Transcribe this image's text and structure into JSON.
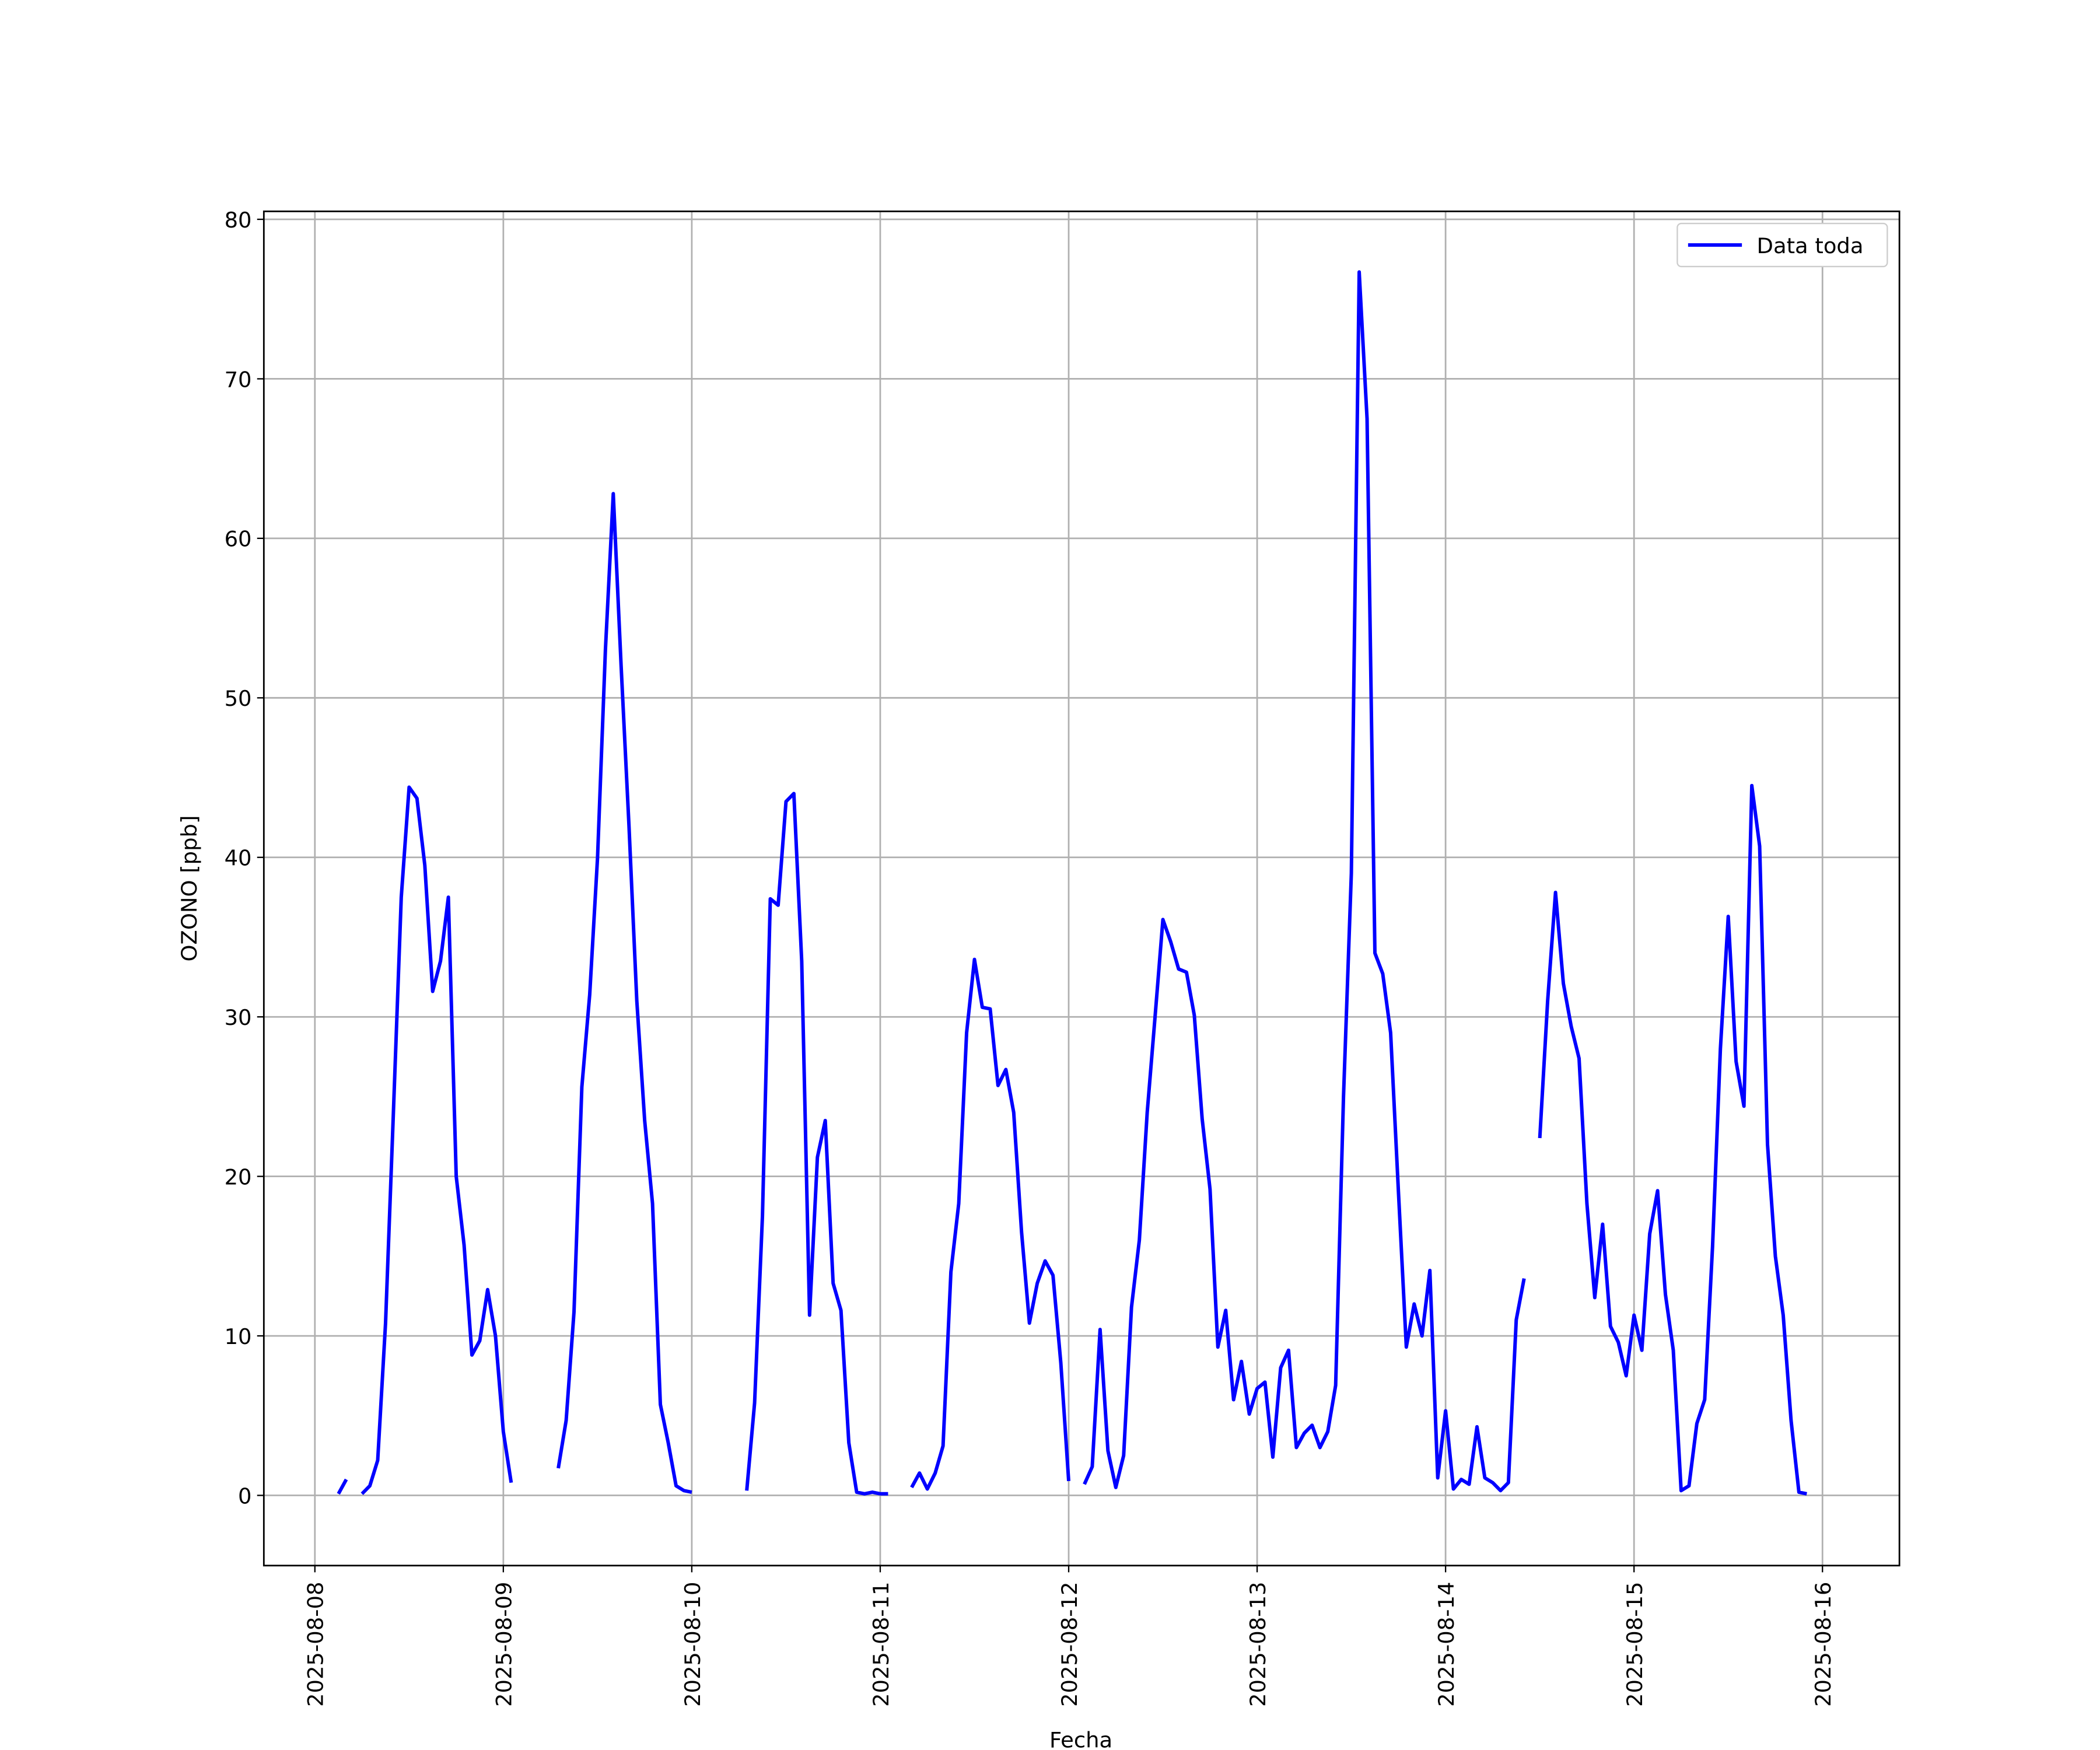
{
  "chart_data": {
    "type": "line",
    "x_label": "Fecha",
    "y_label": "OZONO [ppb]",
    "x": [
      3,
      4,
      5,
      6,
      7,
      8,
      9,
      10,
      11,
      12,
      13,
      14,
      15,
      16,
      17,
      18,
      19,
      20,
      21,
      22,
      23,
      24,
      25,
      28,
      31,
      32,
      33,
      34,
      35,
      36,
      37,
      38,
      39,
      40,
      41,
      42,
      43,
      44,
      45,
      46,
      47,
      48,
      52,
      55,
      56,
      57,
      58,
      59,
      60,
      61,
      62,
      63,
      64,
      65,
      66,
      67,
      68,
      69,
      70,
      71,
      72,
      73,
      75,
      76,
      77,
      78,
      79,
      80,
      81,
      82,
      83,
      84,
      85,
      86,
      87,
      88,
      89,
      90,
      91,
      92,
      93,
      94,
      95,
      96,
      97,
      98,
      99,
      100,
      101,
      102,
      103,
      104,
      105,
      106,
      107,
      108,
      109,
      110,
      111,
      112,
      113,
      114,
      115,
      116,
      117,
      118,
      119,
      120,
      121,
      122,
      123,
      124,
      125,
      126,
      127,
      128,
      129,
      130,
      131,
      132,
      133,
      134,
      135,
      136,
      137,
      138,
      139,
      140,
      141,
      142,
      143,
      144,
      145,
      146,
      147,
      148,
      149,
      150,
      151,
      152,
      153,
      154,
      155,
      156,
      157,
      158,
      159,
      160,
      161,
      162,
      163,
      164,
      165,
      166,
      167,
      168,
      169,
      170,
      171,
      172,
      173,
      174,
      175,
      176,
      177,
      178,
      179,
      180,
      181,
      182,
      183,
      184,
      185,
      186,
      187,
      188,
      189,
      190
    ],
    "series": [
      {
        "name": "Data toda",
        "color": "#0000ff",
        "values": [
          0.1,
          1.0,
          null,
          0.1,
          0.6,
          2.2,
          10.8,
          24,
          37.5,
          44.4,
          43.7,
          39.5,
          31.6,
          33.5,
          37.5,
          20,
          15.7,
          8.8,
          9.7,
          12.9,
          10,
          4,
          0.8,
          null,
          1.7,
          4.7,
          11.5,
          25.6,
          31.4,
          40,
          53,
          62.8,
          52,
          42,
          31,
          23.5,
          18.3,
          5.7,
          3.3,
          0.6,
          0.3,
          0.2,
          null,
          0.3,
          5.8,
          17.5,
          37.4,
          37,
          43.5,
          44,
          33.5,
          11.3,
          21.2,
          23.5,
          13.3,
          11.6,
          3.3,
          0.2,
          0.1,
          0.2,
          0.1,
          0.1,
          null,
          0.5,
          1.4,
          0.4,
          1.4,
          3.1,
          14,
          18.3,
          29,
          33.6,
          30.6,
          30.5,
          25.7,
          26.7,
          24,
          16.5,
          10.8,
          13.3,
          14.7,
          13.8,
          8.3,
          0.9,
          null,
          0.7,
          1.8,
          10.4,
          2.8,
          0.5,
          2.5,
          11.8,
          16,
          24,
          30,
          36.1,
          34.7,
          33,
          32.8,
          30.1,
          23.6,
          19.2,
          9.3,
          11.6,
          6,
          8.4,
          5.1,
          6.7,
          7.1,
          2.4,
          8,
          9.1,
          3,
          3.9,
          4.4,
          3,
          4,
          6.9,
          25,
          39,
          76.7,
          67.5,
          34,
          32.7,
          29,
          19,
          9.3,
          12,
          10,
          14.1,
          1.1,
          5.3,
          0.4,
          1,
          0.7,
          4.3,
          1.1,
          0.8,
          0.3,
          0.8,
          11,
          13.6,
          null,
          22.4,
          31,
          37.8,
          32.1,
          29.4,
          27.4,
          18.3,
          12.4,
          17,
          10.6,
          9.6,
          7.5,
          11.3,
          9.1,
          16.4,
          19.1,
          12.6,
          9.1,
          0.3,
          0.6,
          4.5,
          6,
          15.6,
          28,
          36.3,
          27.2,
          24.4,
          44.5,
          40.7,
          22,
          15,
          11.3,
          4.7,
          0.2,
          0.1
        ]
      }
    ],
    "xlim": [
      -6.5,
      201.8
    ],
    "xticks": [
      {
        "value": 0,
        "label": "2025-08-08"
      },
      {
        "value": 24,
        "label": "2025-08-09"
      },
      {
        "value": 48,
        "label": "2025-08-10"
      },
      {
        "value": 72,
        "label": "2025-08-11"
      },
      {
        "value": 96,
        "label": "2025-08-12"
      },
      {
        "value": 120,
        "label": "2025-08-13"
      },
      {
        "value": 144,
        "label": "2025-08-14"
      },
      {
        "value": 168,
        "label": "2025-08-15"
      },
      {
        "value": 192,
        "label": "2025-08-16"
      }
    ],
    "ylim": [
      -4.4,
      80.5
    ],
    "yticks": [
      0,
      10,
      20,
      30,
      40,
      50,
      60,
      70,
      80
    ],
    "grid": true,
    "legend": "upper right"
  }
}
